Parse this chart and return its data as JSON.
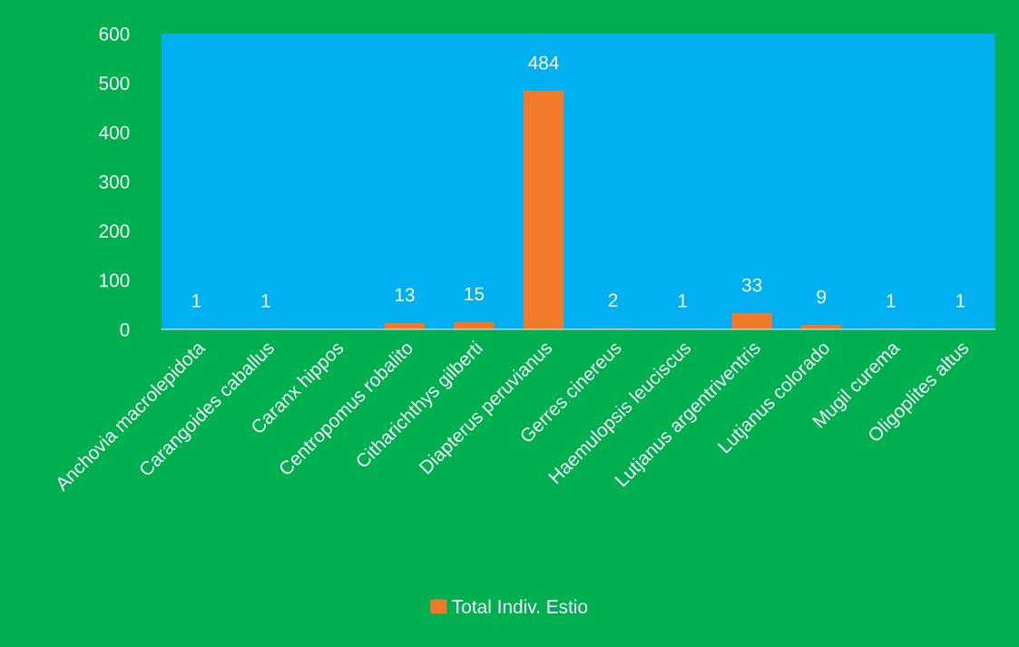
{
  "chart_data": {
    "type": "bar",
    "categories": [
      "Anchovia macrolepidota",
      "Carangoides caballus",
      "Caranx hippos",
      "Centropomus robalito",
      "Citharichthys gilberti",
      "Diapterus peruvianus",
      "Gerres cinereus",
      "Haemulopsis leuciscus",
      "Lutjanus argentriventris",
      "Lutjanus colorado",
      "Mugil curema",
      "Oligoplites altus"
    ],
    "series": [
      {
        "name": "Total Indiv. Estio",
        "color": "#f07a2a",
        "values": [
          1,
          1,
          null,
          13,
          15,
          484,
          2,
          1,
          33,
          9,
          1,
          1
        ],
        "value_labels": [
          "1",
          "1",
          null,
          "13",
          "15",
          "484",
          "2",
          "1",
          "33",
          "9",
          "1",
          "1"
        ]
      }
    ],
    "ylim": [
      0,
      600
    ],
    "yticks": [
      0,
      100,
      200,
      300,
      400,
      500,
      600
    ],
    "grid": false,
    "legend": "bottom"
  }
}
